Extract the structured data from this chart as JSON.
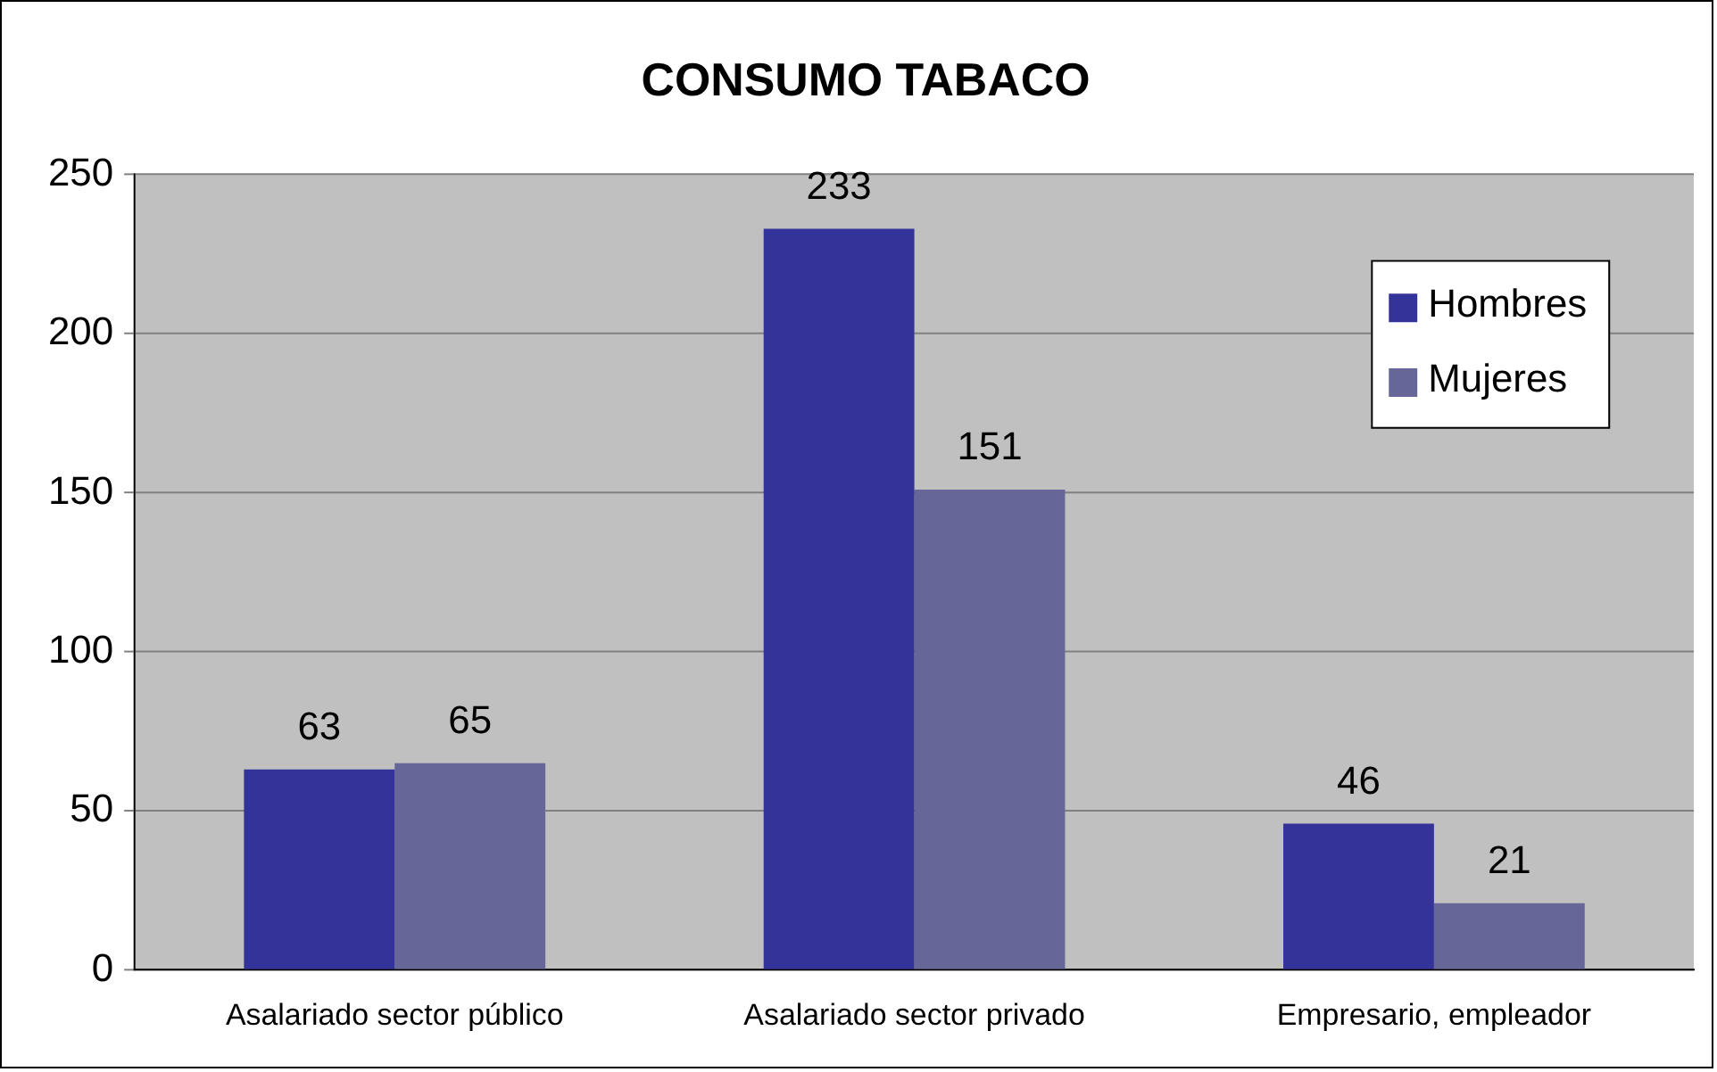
{
  "chart_data": {
    "type": "bar",
    "title": "CONSUMO TABACO",
    "categories": [
      "Asalariado sector público",
      "Asalariado sector privado",
      "Empresario, empleador"
    ],
    "series": [
      {
        "name": "Hombres",
        "color": "#333399",
        "values": [
          63,
          233,
          46
        ]
      },
      {
        "name": "Mujeres",
        "color": "#666699",
        "values": [
          65,
          151,
          21
        ]
      }
    ],
    "ylim": [
      0,
      250
    ],
    "yticks": [
      0,
      50,
      100,
      150,
      200,
      250
    ],
    "grid": "y",
    "legend": "top right",
    "data_labels": true
  }
}
